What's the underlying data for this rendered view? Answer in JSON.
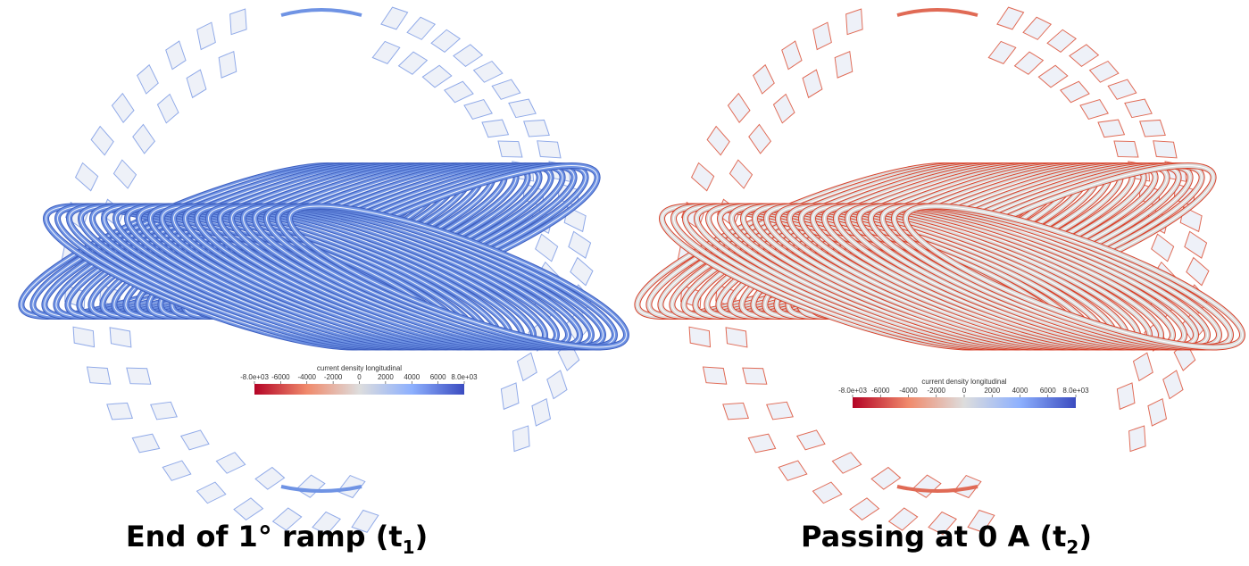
{
  "panels": [
    {
      "caption": {
        "text": "End of 1° ramp (t",
        "subscript": "1",
        "close": ")"
      },
      "colorbar": {
        "title": "current density longitudinal",
        "ticks": [
          {
            "value": -8000,
            "label": "-8.0e+03"
          },
          -6000,
          -4000,
          -2000,
          0,
          2000,
          4000,
          6000,
          {
            "value": 8000,
            "label": "8.0e+03"
          }
        ]
      }
    },
    {
      "caption": {
        "text": "Passing at 0 A (t",
        "subscript": "2",
        "close": ")"
      },
      "colorbar": {
        "title": "current density longitudinal",
        "ticks": [
          {
            "value": -8000,
            "label": "-8.0e+03"
          },
          -6000,
          -4000,
          -2000,
          0,
          2000,
          4000,
          6000,
          {
            "value": 8000,
            "label": "8.0e+03"
          }
        ]
      }
    }
  ]
}
